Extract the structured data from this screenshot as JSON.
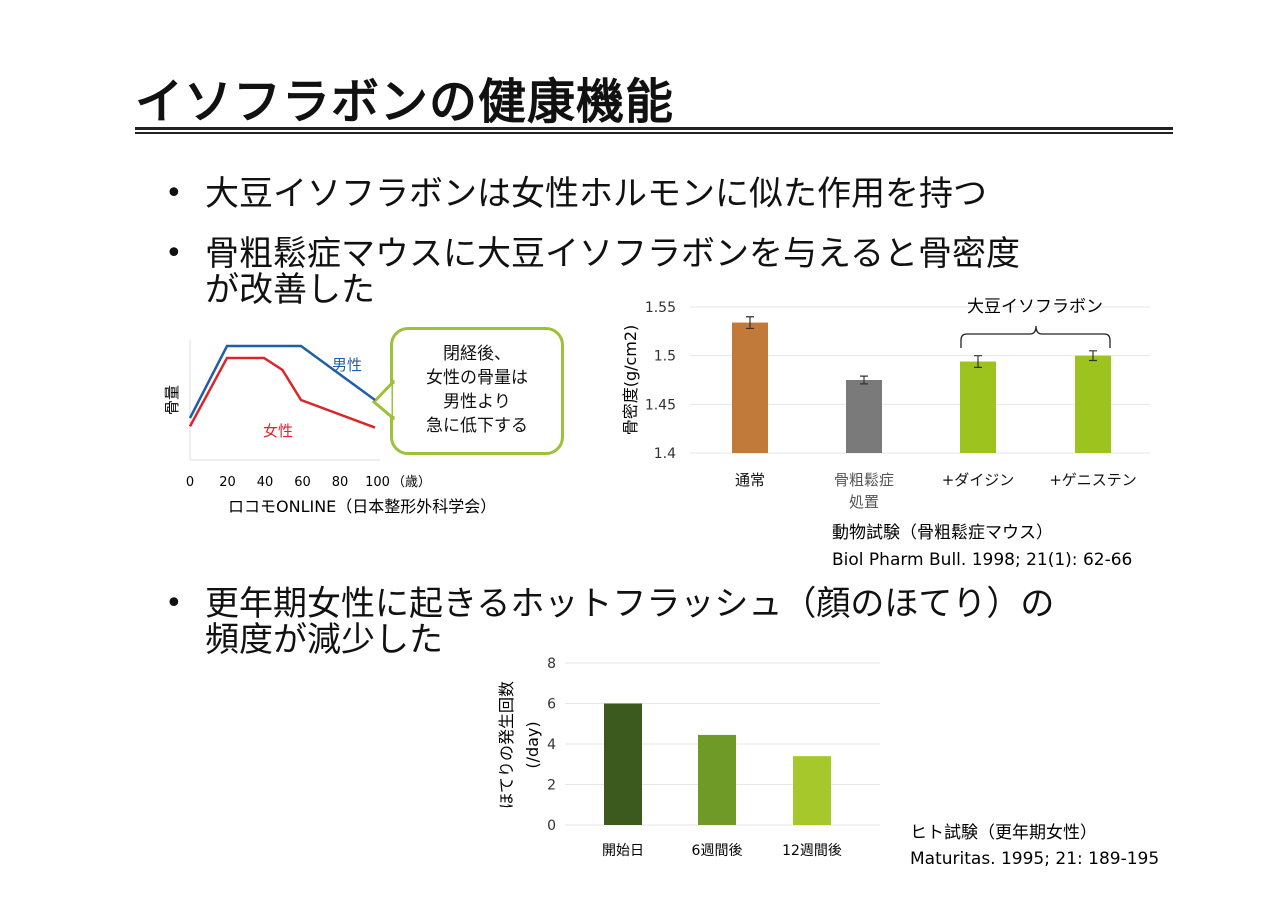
{
  "title": "イソフラボンの健康機能",
  "bullets": [
    {
      "lines": [
        "大豆イソフラボンは女性ホルモンに似た作用を持つ"
      ]
    },
    {
      "lines": [
        "骨粗鬆症マウスに大豆イソフラボンを与えると骨密度",
        "が改善した"
      ]
    },
    {
      "lines": [
        "更年期女性に起きるホットフラッシュ（顔のほてり）の",
        "頻度が減少した"
      ]
    }
  ],
  "bubble": {
    "lines": [
      "閉経後、",
      "女性の骨量は",
      "男性より",
      "急に低下する"
    ]
  },
  "colors": {
    "male": "#1f5fa8",
    "female": "#d9262b",
    "normal": "#c17a3a",
    "osteo": "#7a7a7a",
    "isoflavone": "#9dc41e",
    "hf": [
      "#3d5a1e",
      "#6f9a28",
      "#a6c82a"
    ],
    "bubble_border": "#9dc23a"
  },
  "chart_data": [
    {
      "type": "line",
      "title": "",
      "ylabel": "骨量",
      "xlabel": "（歳）",
      "x_ticks": [
        "0",
        "20",
        "40",
        "60",
        "80",
        "100"
      ],
      "series": [
        {
          "name": "男性",
          "x": [
            0,
            20,
            40,
            60,
            100
          ],
          "y": [
            0.35,
            0.95,
            0.95,
            0.95,
            0.5
          ]
        },
        {
          "name": "女性",
          "x": [
            0,
            20,
            40,
            50,
            60,
            100
          ],
          "y": [
            0.28,
            0.85,
            0.85,
            0.75,
            0.5,
            0.27
          ]
        }
      ],
      "source": "ロコモONLINE（日本整形外科学会）"
    },
    {
      "type": "bar",
      "ylabel": "骨密度(g/cm2)",
      "ylim": [
        1.4,
        1.55
      ],
      "y_ticks": [
        "1.4",
        "1.45",
        "1.5",
        "1.55"
      ],
      "categories": [
        "通常",
        "骨粗鬆症\n処置",
        "+ダイジン",
        "+ゲニステン"
      ],
      "values": [
        1.534,
        1.475,
        1.494,
        1.5
      ],
      "errors": [
        0.006,
        0.004,
        0.006,
        0.005
      ],
      "bracket_label": "大豆イソフラボン",
      "caption": "動物試験（骨粗鬆症マウス）",
      "reference": "Biol Pharm Bull. 1998; 21(1): 62-66"
    },
    {
      "type": "bar",
      "ylabel": "ほてりの発生回数",
      "ylabel2": "(/day)",
      "ylim": [
        0,
        8
      ],
      "y_ticks": [
        "0",
        "2",
        "4",
        "6",
        "8"
      ],
      "categories": [
        "開始日",
        "6週間後",
        "12週間後"
      ],
      "values": [
        6.0,
        4.45,
        3.4
      ],
      "caption": "ヒト試験（更年期女性）",
      "reference": "Maturitas. 1995; 21: 189-195"
    }
  ]
}
